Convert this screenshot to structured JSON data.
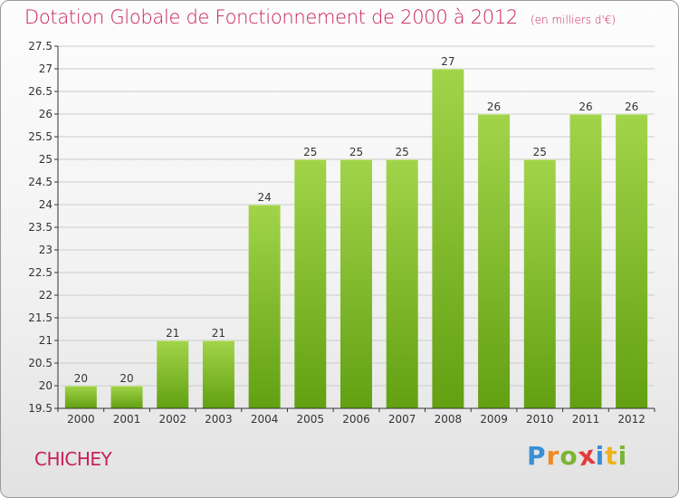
{
  "title": "Dotation Globale de Fonctionnement de 2000 à 2012",
  "unit_note": "(en milliers d'€)",
  "commune": "CHICHEY",
  "logo_text": "Proxiti",
  "colors": {
    "title": "#c8205a",
    "bar_top": "#a2d44a",
    "bar_bottom": "#62a012",
    "grid": "#cccccc",
    "axis": "#333333"
  },
  "chart_data": {
    "type": "bar",
    "categories": [
      "2000",
      "2001",
      "2002",
      "2003",
      "2004",
      "2005",
      "2006",
      "2007",
      "2008",
      "2009",
      "2010",
      "2011",
      "2012"
    ],
    "values": [
      20,
      20,
      21,
      21,
      24,
      25,
      25,
      25,
      27,
      26,
      25,
      26,
      26
    ],
    "data_labels": [
      "20",
      "20",
      "21",
      "21",
      "24",
      "25",
      "25",
      "25",
      "27",
      "26",
      "25",
      "26",
      "26"
    ],
    "title": "Dotation Globale de Fonctionnement de 2000 à 2012",
    "xlabel": "",
    "ylabel": "",
    "ylim": [
      19.5,
      27.5
    ],
    "yticks": [
      "19.5",
      "20",
      "20.5",
      "21",
      "21.5",
      "22",
      "22.5",
      "23",
      "23.5",
      "24",
      "24.5",
      "25",
      "25.5",
      "26",
      "26.5",
      "27",
      "27.5"
    ],
    "grid": true
  }
}
